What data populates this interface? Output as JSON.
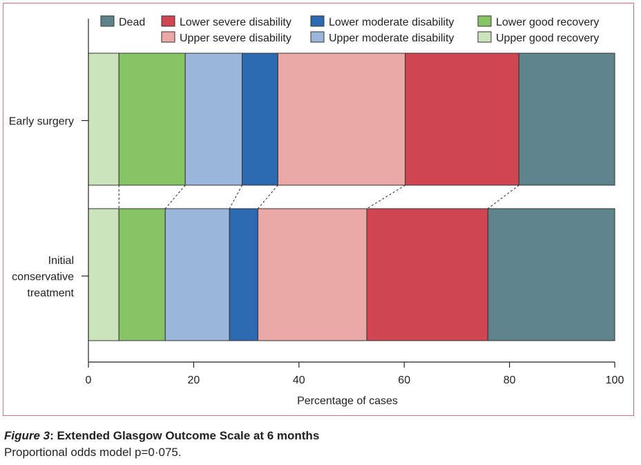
{
  "chart_data": {
    "type": "bar",
    "orientation": "horizontal-stacked",
    "xlabel": "Percentage of cases",
    "xlim": [
      0,
      100
    ],
    "xticks": [
      0,
      20,
      40,
      60,
      80,
      100
    ],
    "categories": [
      "Early surgery",
      "Initial conservative treatment"
    ],
    "category_lines": [
      [
        "Early surgery"
      ],
      [
        "Initial",
        "conservative",
        "treatment"
      ]
    ],
    "series": [
      {
        "name": "Upper good recovery",
        "color": "#cbe4bb",
        "values": [
          5.8,
          5.8
        ]
      },
      {
        "name": "Lower good recovery",
        "color": "#86c465",
        "values": [
          12.6,
          8.8
        ]
      },
      {
        "name": "Upper moderate disability",
        "color": "#9bb6db",
        "values": [
          10.8,
          12.2
        ]
      },
      {
        "name": "Lower moderate disability",
        "color": "#2c69b1",
        "values": [
          6.8,
          5.4
        ]
      },
      {
        "name": "Upper severe disability",
        "color": "#eba8a6",
        "values": [
          24.2,
          20.7
        ]
      },
      {
        "name": "Lower severe disability",
        "color": "#cf4652",
        "values": [
          21.6,
          23.0
        ]
      },
      {
        "name": "Dead",
        "color": "#5e838a",
        "values": [
          18.2,
          24.1
        ]
      }
    ],
    "legend": [
      [
        "Dead",
        "Lower severe disability",
        "Lower moderate disability",
        "Lower good recovery"
      ],
      [
        null,
        "Upper severe disability",
        "Upper moderate disability",
        "Upper good recovery"
      ]
    ],
    "legend_position": "top"
  },
  "caption": {
    "label": "Figure 3",
    "title": ": Extended Glasgow Outcome Scale at 6 months",
    "subtitle": "Proportional odds model p=0·075."
  }
}
